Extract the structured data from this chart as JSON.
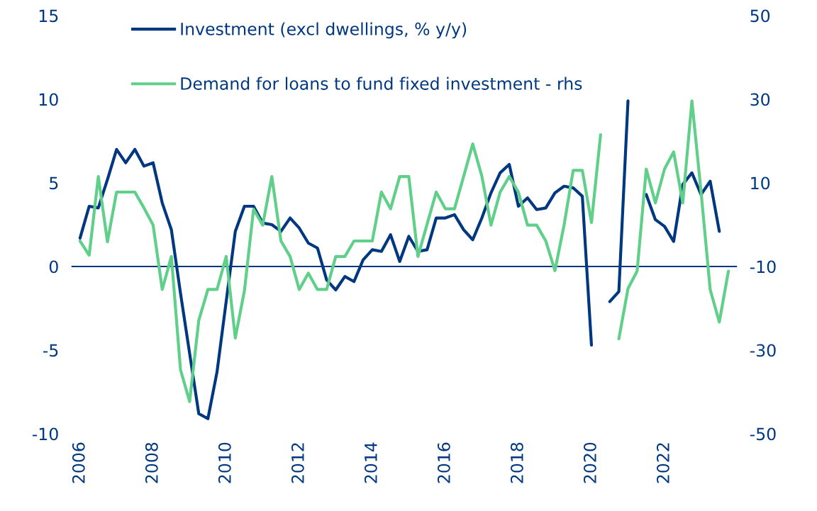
{
  "chart_data": {
    "type": "line",
    "series": [
      {
        "name": "Investment (excl dwellings, % y/y)",
        "color": "#003781",
        "x": [
          2006.0,
          2006.25,
          2006.5,
          2006.75,
          2007.0,
          2007.25,
          2007.5,
          2007.75,
          2008.0,
          2008.25,
          2008.5,
          2008.75,
          2009.0,
          2009.25,
          2009.5,
          2009.75,
          2010.0,
          2010.25,
          2010.5,
          2010.75,
          2011.0,
          2011.25,
          2011.5,
          2011.75,
          2012.0,
          2012.25,
          2012.5,
          2012.75,
          2013.0,
          2013.25,
          2013.5,
          2013.75,
          2014.0,
          2014.25,
          2014.5,
          2014.75,
          2015.0,
          2015.25,
          2015.5,
          2015.75,
          2016.0,
          2016.25,
          2016.5,
          2016.75,
          2017.0,
          2017.25,
          2017.5,
          2017.75,
          2018.0,
          2018.25,
          2018.5,
          2018.75,
          2019.0,
          2019.25,
          2019.5,
          2019.75,
          2020.0,
          2020.25,
          2020.5,
          2020.75,
          2021.0,
          2021.25,
          2021.5,
          2021.75,
          2022.0,
          2022.25,
          2022.5,
          2022.75,
          2023.0,
          2023.25,
          2023.5
        ],
        "values": [
          1.7,
          3.6,
          3.5,
          5.2,
          7.0,
          6.2,
          7.0,
          6.0,
          6.2,
          3.8,
          2.2,
          -1.6,
          -5.2,
          -8.8,
          -9.1,
          -6.3,
          -2.1,
          2.1,
          3.6,
          3.6,
          2.6,
          2.5,
          2.1,
          2.9,
          2.3,
          1.4,
          1.1,
          -0.8,
          -1.4,
          -0.6,
          -0.9,
          0.4,
          1.0,
          0.9,
          1.9,
          0.3,
          1.8,
          0.9,
          1.0,
          2.9,
          2.9,
          3.1,
          2.2,
          1.6,
          2.9,
          4.4,
          5.6,
          6.1,
          3.6,
          4.1,
          3.4,
          3.5,
          4.4,
          4.8,
          4.7,
          4.2,
          -4.7,
          null,
          -2.1,
          -1.5,
          9.9,
          null,
          4.3,
          2.8,
          2.4,
          1.5,
          4.9,
          5.6,
          4.3,
          5.1,
          2.1
        ]
      },
      {
        "name": "Demand for loans to fund fixed investment - rhs",
        "color": "#5fcf8a",
        "axis": "y2",
        "x": [
          2006.0,
          2006.25,
          2006.5,
          2006.75,
          2007.0,
          2007.25,
          2007.5,
          2007.75,
          2008.0,
          2008.25,
          2008.5,
          2008.75,
          2009.0,
          2009.25,
          2009.5,
          2009.75,
          2010.0,
          2010.25,
          2010.5,
          2010.75,
          2011.0,
          2011.25,
          2011.5,
          2011.75,
          2012.0,
          2012.25,
          2012.5,
          2012.75,
          2013.0,
          2013.25,
          2013.5,
          2013.75,
          2014.0,
          2014.25,
          2014.5,
          2014.75,
          2015.0,
          2015.25,
          2015.5,
          2015.75,
          2016.0,
          2016.25,
          2016.5,
          2016.75,
          2017.0,
          2017.25,
          2017.5,
          2017.75,
          2018.0,
          2018.25,
          2018.5,
          2018.75,
          2019.0,
          2019.25,
          2019.5,
          2019.75,
          2020.0,
          2020.25,
          2020.5,
          2020.75,
          2021.0,
          2021.25,
          2021.5,
          2021.75,
          2022.0,
          2022.25,
          2022.5,
          2022.75,
          2023.0,
          2023.25,
          2023.5,
          2023.75
        ],
        "values": [
          -3.9,
          -7.3,
          11.5,
          -4.1,
          7.8,
          7.8,
          7.8,
          4.0,
          -0.1,
          -15.5,
          -7.6,
          -34.7,
          -42.3,
          -22.9,
          -15.5,
          -15.5,
          -7.6,
          -27.1,
          -15.8,
          3.7,
          -0.1,
          11.5,
          -3.9,
          -7.6,
          -15.5,
          -11.6,
          -15.5,
          -15.5,
          -7.6,
          -7.6,
          -3.9,
          -3.9,
          -3.9,
          7.8,
          3.8,
          11.5,
          11.5,
          -7.6,
          0.1,
          7.8,
          3.8,
          3.8,
          11.5,
          19.3,
          11.6,
          -0.1,
          7.8,
          11.5,
          7.8,
          -0.1,
          -0.1,
          -3.9,
          -11,
          -0.1,
          13,
          13,
          0.5,
          21.5,
          null,
          -27.3,
          -15.3,
          -11.1,
          13.3,
          5.2,
          13.3,
          17.4,
          5.2,
          29.6,
          7.9,
          -15.5,
          -23.3,
          -11.1
        ]
      }
    ],
    "xlim": [
      2005.75,
      2024.0
    ],
    "xticks": [
      2006,
      2008,
      2010,
      2012,
      2014,
      2016,
      2018,
      2020,
      2022
    ],
    "ylim": [
      -10,
      15
    ],
    "yticks": [
      -10,
      -5,
      0,
      5,
      10,
      15
    ],
    "y2lim": [
      -50,
      50
    ],
    "y2ticks": [
      -50,
      -30,
      -10,
      10,
      30,
      50
    ],
    "ref_lines": [
      {
        "axis": "y",
        "value": 0,
        "color": "#003781"
      }
    ],
    "grid": false,
    "legend": "top left"
  }
}
